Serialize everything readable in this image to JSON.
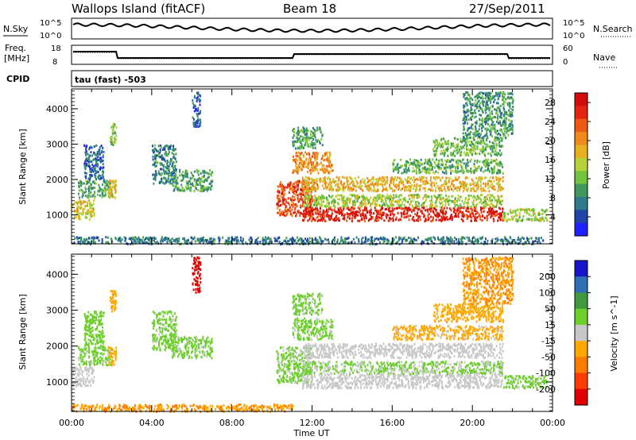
{
  "header": {
    "station": "Wallops Island (fitACF)",
    "beam": "Beam 18",
    "date": "27/Sep/2011"
  },
  "info_panels": {
    "nsky_label": "N.Sky",
    "nsky_ticks": [
      "10^5",
      "10^0"
    ],
    "nsearch_label": "N.Search",
    "nsearch_ticks": [
      "10^5",
      "10^0"
    ],
    "freq_label_1": "Freq.",
    "freq_label_2": "[MHz]",
    "freq_ticks": [
      "18",
      "8"
    ],
    "nave_label": "Nave",
    "nave_ticks": [
      "60",
      "0"
    ],
    "cpid_label": "CPID",
    "cpid_text": "tau (fast) -503"
  },
  "chart_data": [
    {
      "type": "heatmap",
      "name": "power",
      "xlabel": "",
      "ylabel": "Slant Range [km]",
      "x_ticks": [
        "00:00",
        "04:00",
        "08:00",
        "12:00",
        "16:00",
        "20:00",
        "00:00"
      ],
      "xlim_hours": [
        0,
        24
      ],
      "y_ticks": [
        1000,
        2000,
        3000,
        4000
      ],
      "ylim": [
        180,
        4560
      ],
      "colorbar_label": "Power [dB]",
      "colorbar_ticks": [
        4,
        8,
        12,
        16,
        20,
        24,
        28
      ],
      "colorbar_range": [
        0,
        30
      ],
      "colors": [
        "#2020ff",
        "#1f45a8",
        "#2e7a8a",
        "#3e9a5a",
        "#72c43f",
        "#b8d33a",
        "#e8b01e",
        "#f08a1a",
        "#ee5a14",
        "#e4240f",
        "#d40b0b"
      ],
      "regions": [
        {
          "t0": 0.0,
          "t1": 1.1,
          "r0": 900,
          "r1": 1450,
          "v": 16
        },
        {
          "t0": 0.3,
          "t1": 2.0,
          "r0": 1500,
          "r1": 2000,
          "v": 10
        },
        {
          "t0": 0.6,
          "t1": 1.6,
          "r0": 2000,
          "r1": 3000,
          "v": 6
        },
        {
          "t0": 1.8,
          "t1": 2.2,
          "r0": 1500,
          "r1": 2000,
          "v": 18
        },
        {
          "t0": 1.9,
          "t1": 2.2,
          "r0": 3000,
          "r1": 3600,
          "v": 12
        },
        {
          "t0": 4.0,
          "t1": 5.2,
          "r0": 1900,
          "r1": 3000,
          "v": 8
        },
        {
          "t0": 5.0,
          "t1": 7.0,
          "r0": 1700,
          "r1": 2300,
          "v": 10
        },
        {
          "t0": 6.0,
          "t1": 6.4,
          "r0": 3500,
          "r1": 4500,
          "v": 5
        },
        {
          "t0": 10.2,
          "t1": 12.0,
          "r0": 1000,
          "r1": 2000,
          "v": 24
        },
        {
          "t0": 11.5,
          "t1": 21.5,
          "r0": 850,
          "r1": 1250,
          "v": 27
        },
        {
          "t0": 11.5,
          "t1": 21.5,
          "r0": 1250,
          "r1": 1600,
          "v": 14
        },
        {
          "t0": 11.5,
          "t1": 21.5,
          "r0": 1700,
          "r1": 2100,
          "v": 18
        },
        {
          "t0": 11.0,
          "t1": 13.0,
          "r0": 2200,
          "r1": 2800,
          "v": 20
        },
        {
          "t0": 11.0,
          "t1": 12.5,
          "r0": 2900,
          "r1": 3500,
          "v": 10
        },
        {
          "t0": 16.0,
          "t1": 21.5,
          "r0": 2200,
          "r1": 2600,
          "v": 11
        },
        {
          "t0": 18.0,
          "t1": 21.5,
          "r0": 2700,
          "r1": 3200,
          "v": 12
        },
        {
          "t0": 19.5,
          "t1": 22.0,
          "r0": 3200,
          "r1": 4500,
          "v": 9
        },
        {
          "t0": 21.5,
          "t1": 23.7,
          "r0": 850,
          "r1": 1200,
          "v": 14
        },
        {
          "t0": 0.0,
          "t1": 23.5,
          "r0": 200,
          "r1": 400,
          "v": 7
        }
      ]
    },
    {
      "type": "heatmap",
      "name": "velocity",
      "xlabel": "Time UT",
      "ylabel": "Slant Range [km]",
      "x_ticks": [
        "00:00",
        "04:00",
        "08:00",
        "12:00",
        "16:00",
        "20:00",
        "00:00"
      ],
      "xlim_hours": [
        0,
        24
      ],
      "y_ticks": [
        1000,
        2000,
        3000,
        4000
      ],
      "ylim": [
        180,
        4560
      ],
      "colorbar_label": "Velocity [m s^-1]",
      "colorbar_ticks": [
        200,
        100,
        50,
        15,
        -15,
        -50,
        -100,
        -200
      ],
      "colorbar_range": [
        -250,
        250
      ],
      "colors": [
        "#1515cc",
        "#2f6fb8",
        "#3f9a3f",
        "#6ccf2a",
        "#c8c8c8",
        "#ffa800",
        "#ff7b00",
        "#ff3c00",
        "#e00000"
      ],
      "regions": [
        {
          "t0": 0.0,
          "t1": 1.1,
          "r0": 900,
          "r1": 1450,
          "v": 0
        },
        {
          "t0": 0.3,
          "t1": 2.0,
          "r0": 1500,
          "r1": 2000,
          "v": 40
        },
        {
          "t0": 0.6,
          "t1": 1.6,
          "r0": 2000,
          "r1": 3000,
          "v": 60
        },
        {
          "t0": 1.8,
          "t1": 2.2,
          "r0": 1500,
          "r1": 2000,
          "v": -60
        },
        {
          "t0": 1.9,
          "t1": 2.2,
          "r0": 3000,
          "r1": 3600,
          "v": -60
        },
        {
          "t0": 4.0,
          "t1": 5.2,
          "r0": 1900,
          "r1": 3000,
          "v": 40
        },
        {
          "t0": 5.0,
          "t1": 7.0,
          "r0": 1700,
          "r1": 2300,
          "v": 40
        },
        {
          "t0": 6.0,
          "t1": 6.4,
          "r0": 3500,
          "r1": 4500,
          "v": -220
        },
        {
          "t0": 10.2,
          "t1": 12.0,
          "r0": 1000,
          "r1": 2000,
          "v": 40
        },
        {
          "t0": 11.5,
          "t1": 21.5,
          "r0": 850,
          "r1": 1250,
          "v": 0
        },
        {
          "t0": 11.5,
          "t1": 21.5,
          "r0": 1250,
          "r1": 1600,
          "v": 30
        },
        {
          "t0": 11.5,
          "t1": 21.5,
          "r0": 1700,
          "r1": 2100,
          "v": 0
        },
        {
          "t0": 11.0,
          "t1": 13.0,
          "r0": 2200,
          "r1": 2800,
          "v": 40
        },
        {
          "t0": 11.0,
          "t1": 12.5,
          "r0": 2900,
          "r1": 3500,
          "v": 40
        },
        {
          "t0": 16.0,
          "t1": 21.5,
          "r0": 2200,
          "r1": 2600,
          "v": -40
        },
        {
          "t0": 18.0,
          "t1": 21.5,
          "r0": 2700,
          "r1": 3200,
          "v": -60
        },
        {
          "t0": 19.5,
          "t1": 22.0,
          "r0": 3200,
          "r1": 4500,
          "v": -80
        },
        {
          "t0": 21.5,
          "t1": 23.7,
          "r0": 850,
          "r1": 1200,
          "v": 40
        },
        {
          "t0": 0.0,
          "t1": 11.0,
          "r0": 200,
          "r1": 400,
          "v": -80
        }
      ]
    }
  ]
}
